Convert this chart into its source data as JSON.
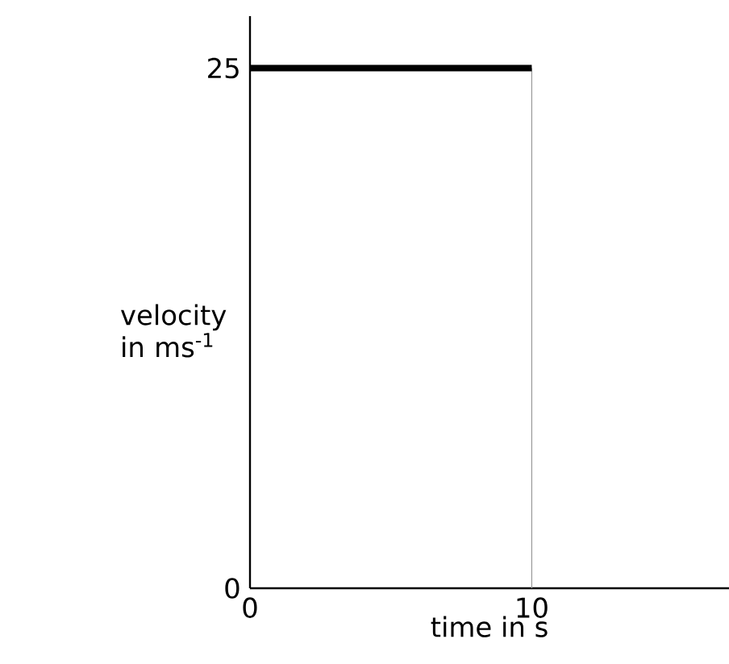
{
  "chart_data": {
    "type": "line",
    "xlabel": "time in s",
    "ylabel": "velocity in ms$^{-1}$",
    "x": [
      0,
      10
    ],
    "series": [
      {
        "color": "#000000",
        "values": [
          25,
          25
        ]
      }
    ],
    "xlim": [
      0,
      17
    ],
    "ylim": [
      0,
      27.5
    ],
    "xticks": [
      {
        "value": 0,
        "label": "0"
      },
      {
        "value": 10,
        "label": "10"
      }
    ],
    "yticks": [
      {
        "value": 0,
        "label": "0"
      },
      {
        "value": 25,
        "label": "25"
      }
    ],
    "ref_lines": [
      {
        "axis": "x",
        "value": 10,
        "color": "#999999",
        "line_style": "solid"
      }
    ],
    "grid": false,
    "marker": "none"
  }
}
